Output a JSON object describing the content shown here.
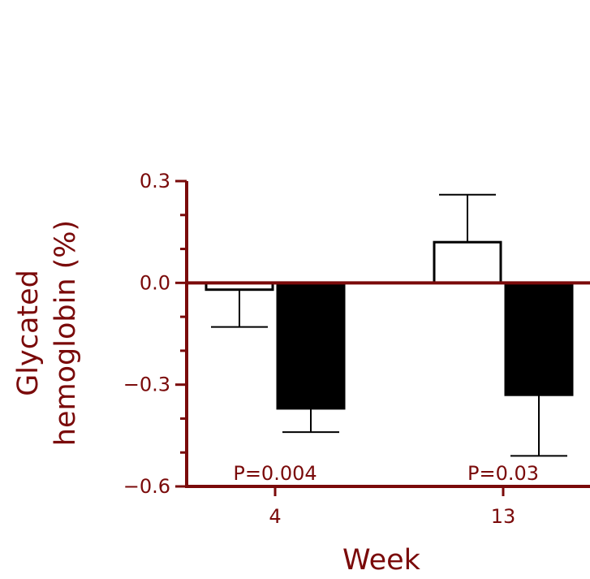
{
  "chart_data": {
    "type": "bar",
    "title": "",
    "xlabel": "Week",
    "ylabel_lines": [
      "Glycated",
      "hemoglobin (%)"
    ],
    "ylim": [
      -0.6,
      0.3
    ],
    "yticks": [
      {
        "value": 0.3,
        "label": "0.3"
      },
      {
        "value": 0.0,
        "label": "0.0"
      },
      {
        "value": -0.3,
        "label": "−0.3"
      },
      {
        "value": -0.6,
        "label": "−0.6"
      }
    ],
    "categories": [
      "4",
      "13"
    ],
    "series": [
      {
        "values": [
          -0.02,
          0.12
        ],
        "errors": [
          0.11,
          0.14
        ],
        "fill": "#ffffff"
      },
      {
        "values": [
          -0.37,
          -0.33
        ],
        "errors": [
          0.07,
          0.18
        ],
        "fill": "#000000"
      }
    ],
    "annotations": [
      "P=0.004",
      "P=0.03"
    ],
    "grid": false,
    "colors": {
      "axis": "#7a0a0a",
      "text": "#7a0a0a"
    }
  }
}
